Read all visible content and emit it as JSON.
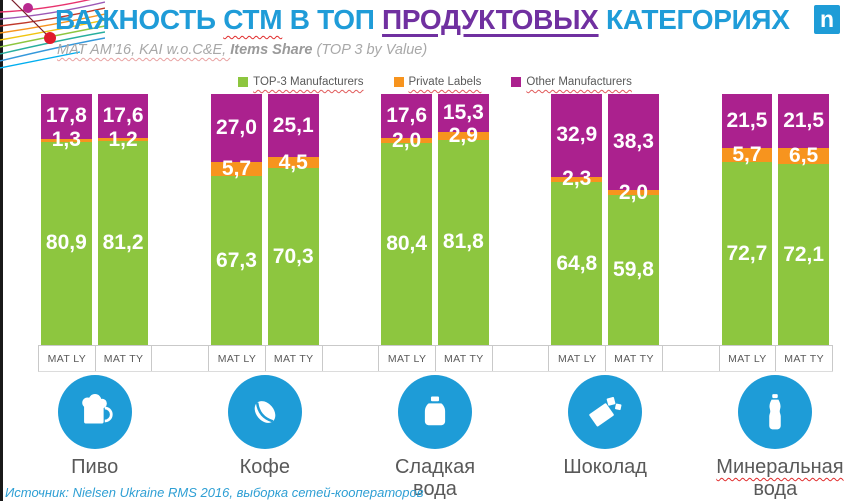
{
  "header": {
    "title": {
      "part1": "ВАЖНОСТЬ ",
      "part2": "СТМ",
      "part3": " В ТОП ",
      "part4": "ПРОДУКТОВЫХ",
      "part5": " КАТЕГОРИЯХ"
    },
    "subtitle": {
      "part1": "MAT AM’16, KAI w.o.C&E, ",
      "part2": "Items Share",
      "part3": " (TOP 3 by Value)"
    },
    "logo_letter": "n"
  },
  "legend": {
    "items": [
      {
        "label": "TOP-3 Manufacturers",
        "color": "#8DC63F"
      },
      {
        "label": "Private Labels",
        "color": "#F7941E"
      },
      {
        "label": "Other Manufacturers",
        "color": "#AB218E"
      }
    ]
  },
  "chart_data": {
    "type": "bar",
    "stacked": true,
    "ylim": [
      0,
      100
    ],
    "unit": "share %",
    "grid": false,
    "legend_position": "top-center",
    "series_order_bottom_to_top": [
      "TOP-3 Manufacturers",
      "Private Labels",
      "Other Manufacturers"
    ],
    "series_colors": [
      "#8DC63F",
      "#F7941E",
      "#AB218E"
    ],
    "bar_sublabels": [
      "MAT LY",
      "MAT TY"
    ],
    "groups": [
      {
        "category": "Пиво",
        "icon": "beer-icon",
        "misspelled": [],
        "bars": [
          {
            "sublabel": "MAT LY",
            "top3": 80.9,
            "private_labels": 1.3,
            "other": 17.8,
            "display": [
              "80,9",
              "1,3",
              "17,8"
            ]
          },
          {
            "sublabel": "MAT TY",
            "top3": 81.2,
            "private_labels": 1.2,
            "other": 17.6,
            "display": [
              "81,2",
              "1,2",
              "17,6"
            ]
          }
        ]
      },
      {
        "category": "Кофе",
        "icon": "coffee-bean-icon",
        "misspelled": [],
        "bars": [
          {
            "sublabel": "MAT LY",
            "top3": 67.3,
            "private_labels": 5.7,
            "other": 27.0,
            "display": [
              "67,3",
              "5,7",
              "27,0"
            ]
          },
          {
            "sublabel": "MAT TY",
            "top3": 70.3,
            "private_labels": 4.5,
            "other": 25.1,
            "display": [
              "70,3",
              "4,5",
              "25,1"
            ]
          }
        ]
      },
      {
        "category": "Сладкая вода",
        "icon": "soft-drink-bottle-icon",
        "misspelled": [],
        "bars": [
          {
            "sublabel": "MAT LY",
            "top3": 80.4,
            "private_labels": 2.0,
            "other": 17.6,
            "display": [
              "80,4",
              "2,0",
              "17,6"
            ]
          },
          {
            "sublabel": "MAT TY",
            "top3": 81.8,
            "private_labels": 2.9,
            "other": 15.3,
            "display": [
              "81,8",
              "2,9",
              "15,3"
            ]
          }
        ]
      },
      {
        "category": "Шоколад",
        "icon": "chocolate-icon",
        "misspelled": [],
        "bars": [
          {
            "sublabel": "MAT LY",
            "top3": 64.8,
            "private_labels": 2.3,
            "other": 32.9,
            "display": [
              "64,8",
              "2,3",
              "32,9"
            ]
          },
          {
            "sublabel": "MAT TY",
            "top3": 59.8,
            "private_labels": 2.0,
            "other": 38.3,
            "display": [
              "59,8",
              "2,0",
              "38,3"
            ]
          }
        ]
      },
      {
        "category": "Минеральная вода",
        "icon": "mineral-water-bottle-icon",
        "misspelled": [
          "Минеральная"
        ],
        "bars": [
          {
            "sublabel": "MAT LY",
            "top3": 72.7,
            "private_labels": 5.7,
            "other": 21.5,
            "display": [
              "72,7",
              "5,7",
              "21,5"
            ]
          },
          {
            "sublabel": "MAT TY",
            "top3": 72.1,
            "private_labels": 6.5,
            "other": 21.5,
            "display": [
              "72,1",
              "6,5",
              "21,5"
            ]
          }
        ]
      }
    ]
  },
  "footer": {
    "source": "Источник: Nielsen Ukraine RMS 2016, выборка сетей-кооператоров"
  },
  "colors": {
    "title_blue": "#1F9CD8",
    "title_purple": "#7030A0",
    "icon_circle_blue": "#1E9CD7",
    "axis_border": "#C9C9C9",
    "label_gray": "#595959",
    "source_blue": "#2E9FD4"
  }
}
